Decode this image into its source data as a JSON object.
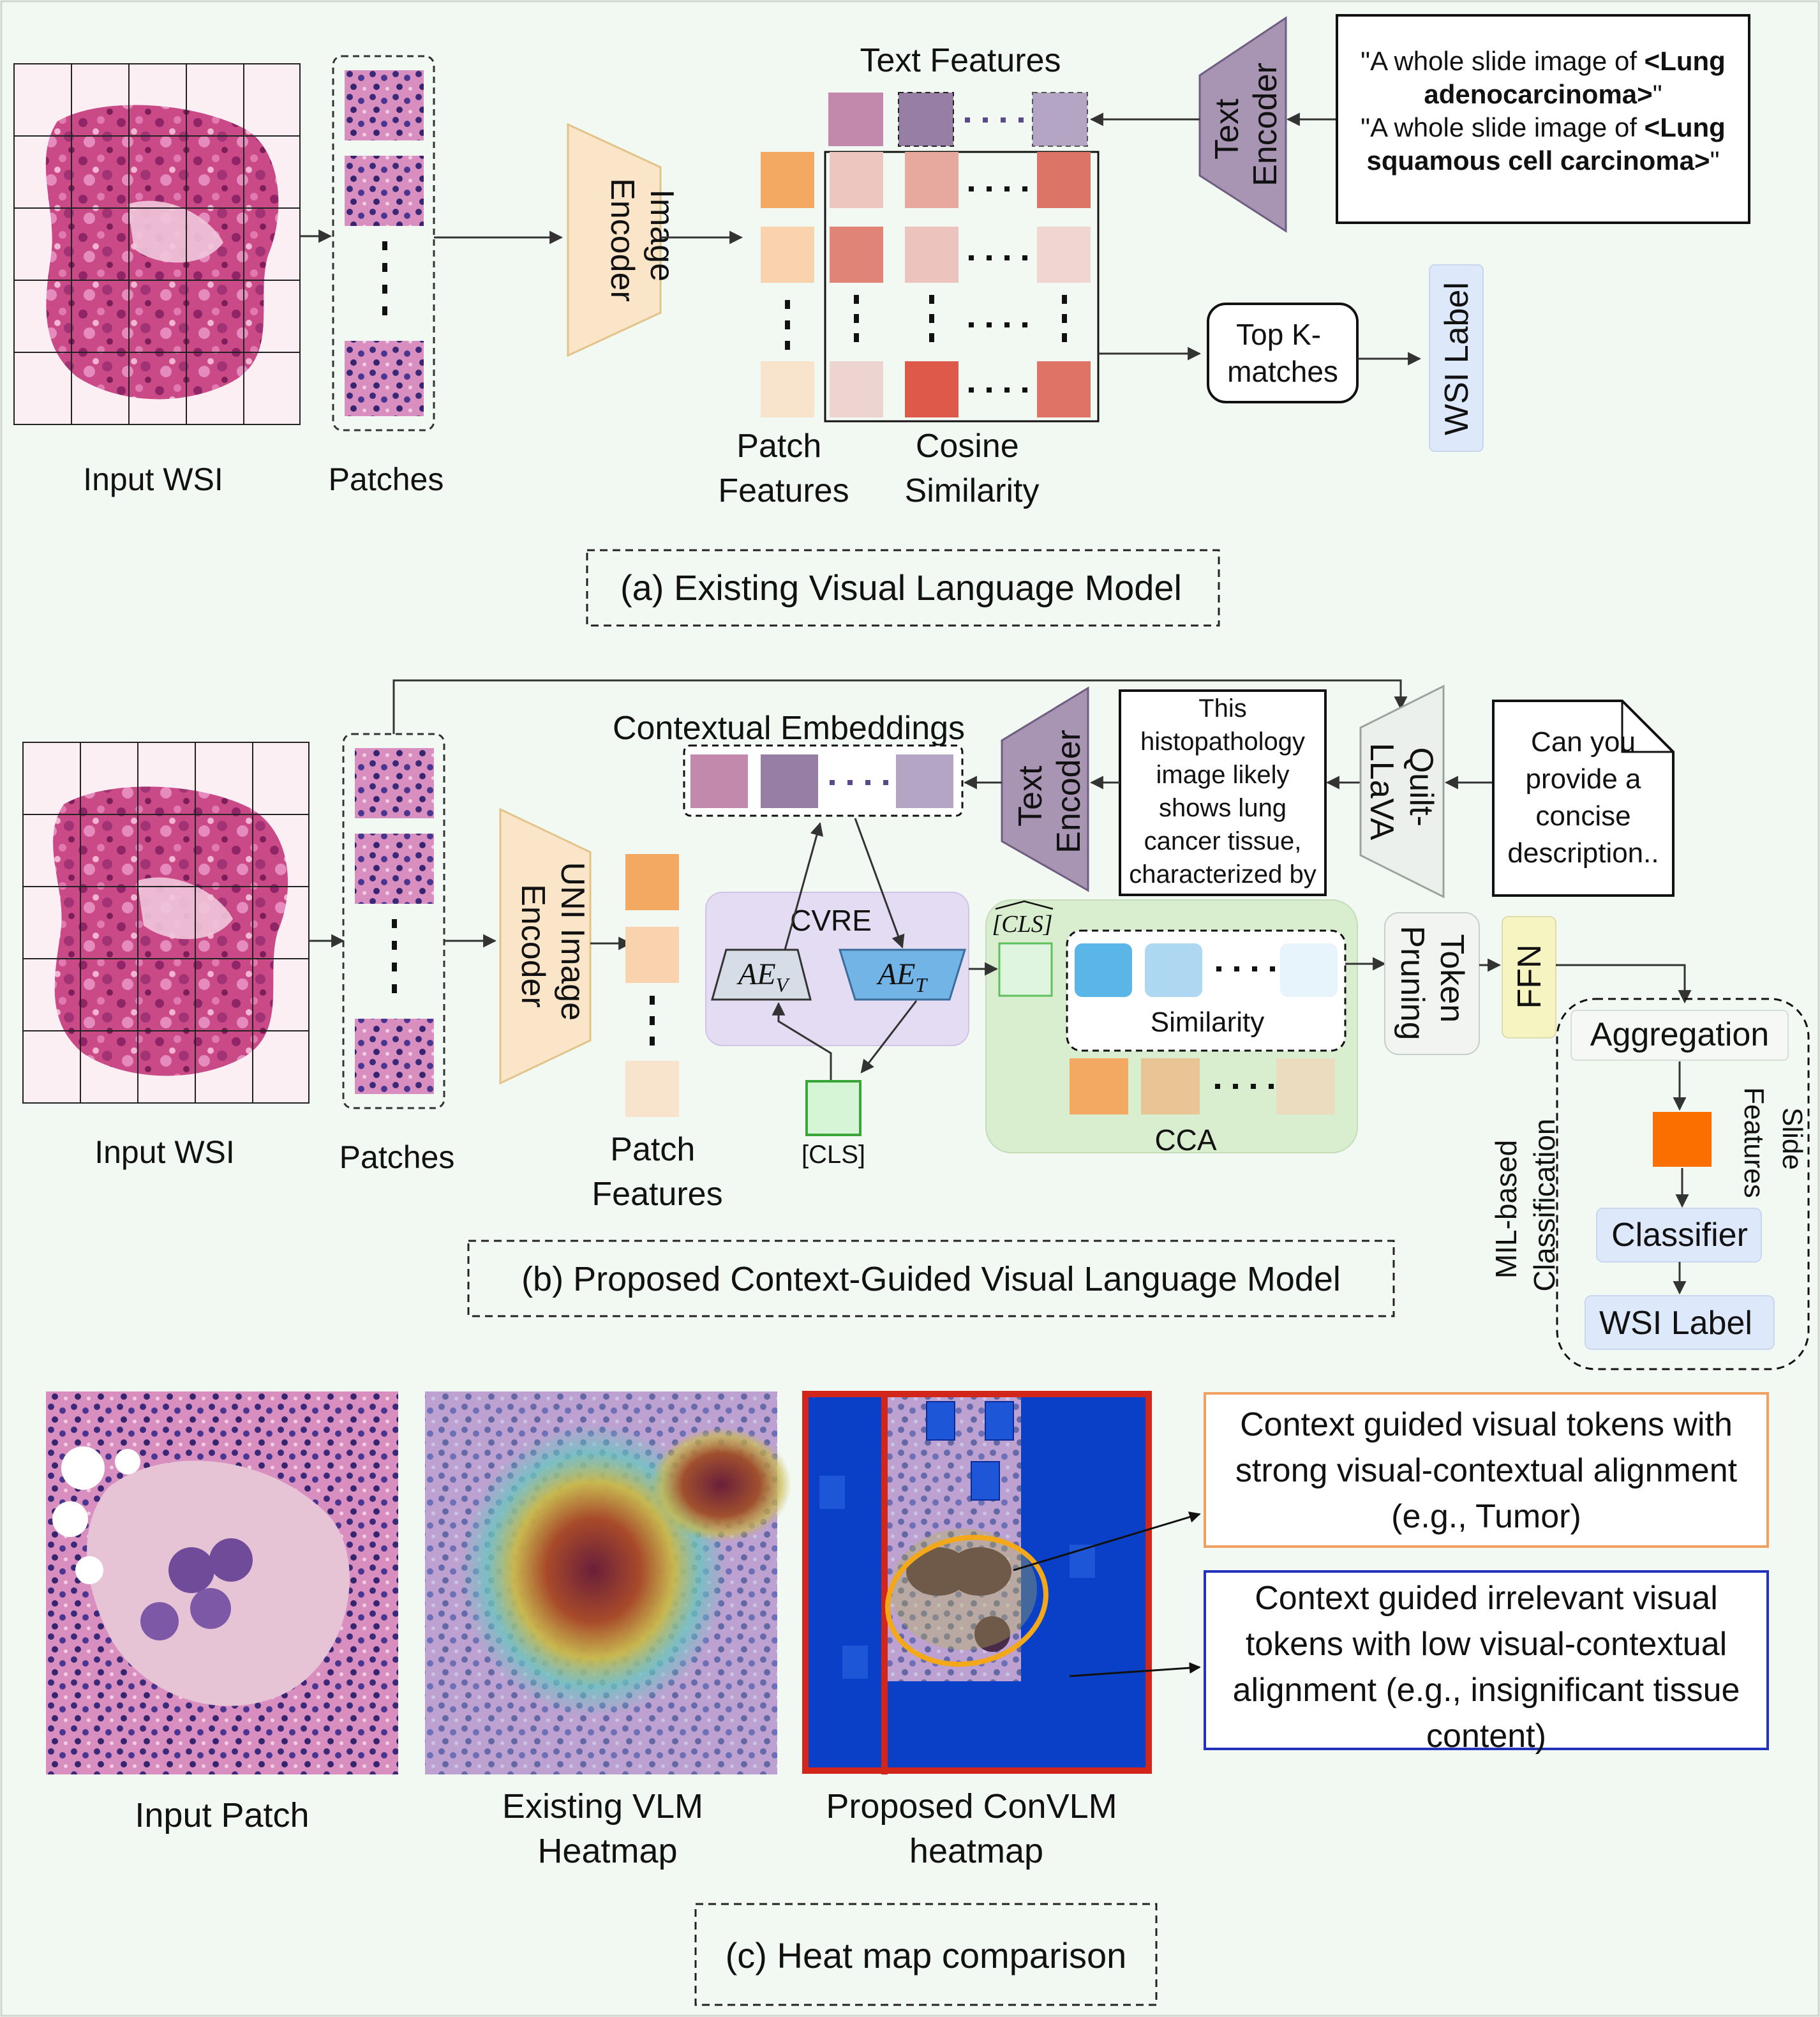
{
  "section_a": {
    "caption": "(a) Existing Visual Language Model",
    "input_wsi": "Input WSI",
    "patches": "Patches",
    "image_encoder": [
      "Image",
      "Encoder"
    ],
    "text_features": "Text Features",
    "text_encoder": [
      "Text",
      "Encoder"
    ],
    "prompt_1_prefix": "\"A whole slide image of ",
    "prompt_1_bold": "<Lung adenocarcinoma>",
    "prompt_1_suffix": "\"",
    "prompt_2_prefix": "\"A whole slide image of ",
    "prompt_2_bold": "<Lung squamous cell carcinoma>",
    "prompt_2_suffix": "\"",
    "patch_features": [
      "Patch",
      "Features"
    ],
    "cosine_similarity": [
      "Cosine",
      "Similarity"
    ],
    "top_k": [
      "Top K-",
      "matches"
    ],
    "wsi_label": "WSI Label"
  },
  "section_b": {
    "caption": "(b) Proposed Context-Guided Visual Language Model",
    "input_wsi": "Input WSI",
    "patches": "Patches",
    "uni_encoder": [
      "UNI Image",
      "Encoder"
    ],
    "patch_features": [
      "Patch",
      "Features"
    ],
    "contextual_embeddings": "Contextual Embeddings",
    "text_encoder": [
      "Text",
      "Encoder"
    ],
    "llava_output": "This histopathology image likely shows lung cancer tissue, characterized by",
    "quilt_llava": [
      "Quilt-",
      "LLaVA"
    ],
    "query": "Can you provide a concise description..",
    "cvre": "CVRE",
    "ae_v": "AE",
    "ae_v_sub": "V",
    "ae_t": "AE",
    "ae_t_sub": "T",
    "cls": "[CLS]",
    "cls_hat": "CLS",
    "similarity": "Similarity",
    "cca": "CCA",
    "token_pruning": [
      "Token",
      "Pruning"
    ],
    "ffn": "FFN",
    "aggregation": "Aggregation",
    "slide_features": [
      "Slide",
      "Features"
    ],
    "mil": [
      "MIL-based",
      "Classification"
    ],
    "classifier": "Classifier",
    "wsi_label": "WSI Label"
  },
  "section_c": {
    "caption": "(c) Heat map comparison",
    "input_patch": "Input Patch",
    "existing_heatmap": [
      "Existing VLM",
      "Heatmap"
    ],
    "proposed_heatmap": [
      "Proposed ConVLM",
      "heatmap"
    ],
    "legend_relevant": "Context guided visual tokens with strong visual-contextual alignment (e.g., Tumor)",
    "legend_irrelevant": "Context guided irrelevant visual tokens with low visual-contextual alignment (e.g., insignificant tissue content)"
  },
  "colors": {
    "image_encoder_fill": "#fbe5c8",
    "text_encoder_fill": "#a895b3",
    "cvre_fill": "#e3dcf2",
    "cca_fill": "#d9edcf",
    "ffn_fill": "#f6f5c2",
    "heat_blue": "#0a3fc8",
    "heat_border": "#d3261a",
    "legend_orange": "#f0a060",
    "legend_blue": "#2233bb"
  }
}
